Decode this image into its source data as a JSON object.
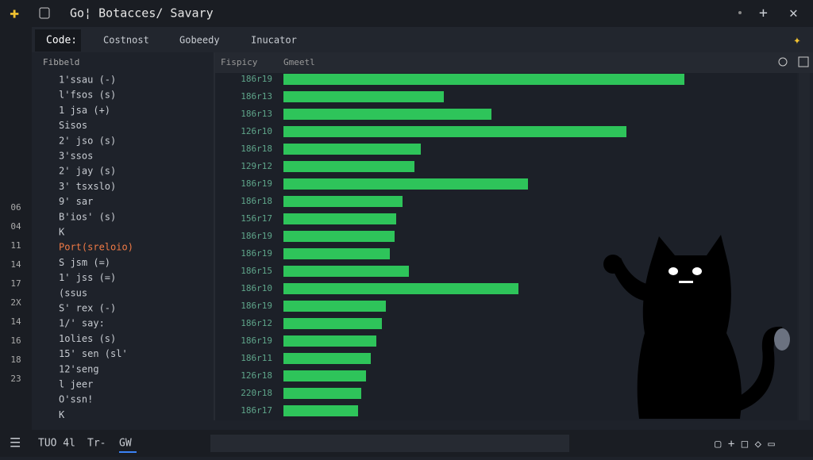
{
  "titlebar": {
    "title": "Go¦ Botacces/ Savary"
  },
  "tabs": [
    "Code:",
    "Costnost",
    "Gobeedy",
    "Inucator"
  ],
  "rail": [
    "06",
    "04",
    "11",
    "14",
    "17",
    "2X",
    "14",
    "16",
    "18",
    "23"
  ],
  "explorer": {
    "header": "Fibbeld",
    "items": [
      "1'ssau (-)",
      "l'fsos (s)",
      "1 jsa (+)",
      "Sisos",
      "2' jso (s)",
      "3'ssos",
      "2' jay (s)",
      "3' tsxslo)",
      "9' sar",
      "B'ios' (s)",
      "K",
      "Port(sreloio)",
      "S jsm (=)",
      "1' jss (=)",
      "(ssus",
      "S' rex (-)",
      "1/' say:",
      "1olies (s)",
      "15' sen (sl'",
      "12'seng",
      "l jeer",
      "O'ssn!",
      "K"
    ]
  },
  "panel": {
    "headers": [
      "Fispicy",
      "Gmeetl"
    ],
    "rows": [
      {
        "label": "186r19",
        "value": 505
      },
      {
        "label": "186r13",
        "value": 202
      },
      {
        "label": "186r13",
        "value": 262
      },
      {
        "label": "126r10",
        "value": 432
      },
      {
        "label": "186r18",
        "value": 173
      },
      {
        "label": "129r12",
        "value": 165
      },
      {
        "label": "186r19",
        "value": 308
      },
      {
        "label": "186r18",
        "value": 150
      },
      {
        "label": "156r17",
        "value": 142
      },
      {
        "label": "186r19",
        "value": 140
      },
      {
        "label": "186r19",
        "value": 134
      },
      {
        "label": "186r15",
        "value": 158
      },
      {
        "label": "186r10",
        "value": 296
      },
      {
        "label": "186r19",
        "value": 129
      },
      {
        "label": "186r12",
        "value": 124
      },
      {
        "label": "186r19",
        "value": 117
      },
      {
        "label": "186r11",
        "value": 110
      },
      {
        "label": "126r18",
        "value": 104
      },
      {
        "label": "220r18",
        "value": 98
      },
      {
        "label": "186r17",
        "value": 94
      }
    ],
    "color": "#2ec45a"
  },
  "statusbar": [
    "TUO 4l",
    "Tr-",
    "GW"
  ]
}
